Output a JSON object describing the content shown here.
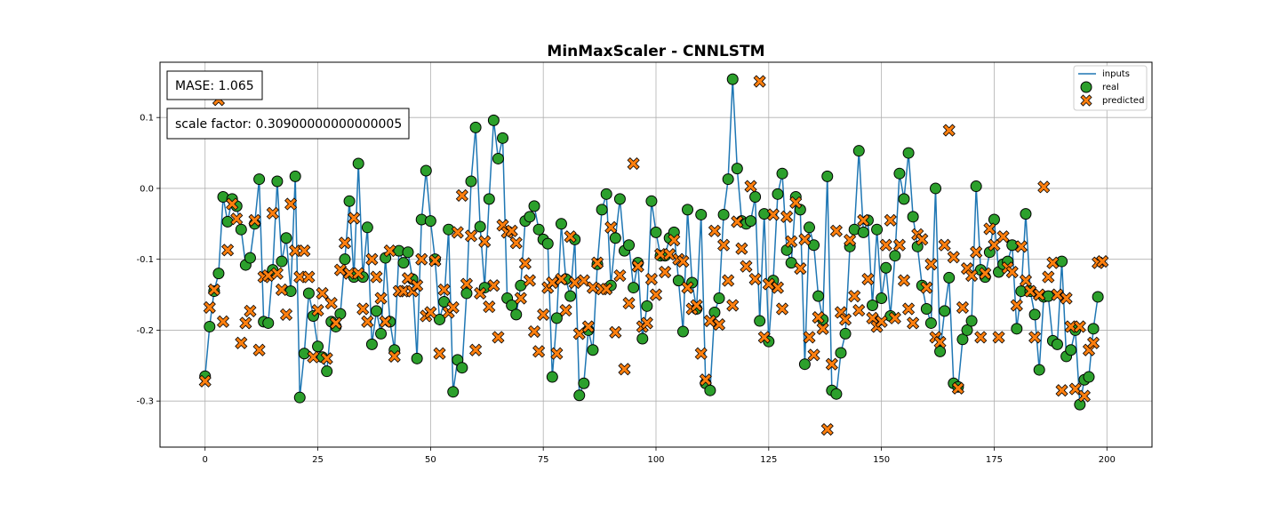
{
  "chart_data": {
    "type": "scatter",
    "title": "MinMaxScaler - CNNLSTM",
    "xlabel": "",
    "ylabel": "",
    "xlim": [
      -10,
      210
    ],
    "ylim": [
      -0.365,
      0.178
    ],
    "x_ticks": [
      0,
      25,
      50,
      75,
      100,
      125,
      150,
      175,
      200
    ],
    "y_ticks": [
      -0.3,
      -0.2,
      -0.1,
      0.0,
      0.1
    ],
    "grid": true,
    "legend_position": "top-right",
    "annotations": [
      {
        "text": "MASE: 1.065",
        "position": "top-left"
      },
      {
        "text": "scale factor: 0.30900000000000005",
        "position": "top-left"
      }
    ],
    "series": [
      {
        "name": "inputs",
        "kind": "line",
        "color": "#1f77b4",
        "values": [
          -0.265,
          -0.195,
          -0.145,
          -0.12,
          -0.012,
          -0.047,
          -0.015,
          -0.025,
          -0.058,
          -0.108,
          -0.098,
          -0.05,
          0.013,
          -0.188,
          -0.19,
          -0.115,
          0.01,
          -0.103,
          -0.07,
          -0.145,
          0.017,
          -0.295,
          -0.233,
          -0.148,
          -0.18,
          -0.223,
          -0.238,
          -0.258,
          -0.188,
          -0.195,
          -0.177,
          -0.1,
          -0.018,
          -0.125,
          0.035,
          -0.125,
          -0.055,
          -0.22,
          -0.173,
          -0.205,
          -0.098,
          -0.188,
          -0.228,
          -0.088,
          -0.105,
          -0.09,
          -0.128,
          -0.24,
          -0.044,
          0.025,
          -0.046,
          -0.1,
          -0.185,
          -0.16,
          -0.058,
          -0.287,
          -0.242,
          -0.253,
          -0.148,
          0.01,
          0.086,
          -0.054,
          -0.14,
          -0.015,
          0.096,
          0.042,
          0.071,
          -0.155,
          -0.165,
          -0.178,
          -0.137,
          -0.046,
          -0.04,
          -0.025,
          -0.058,
          -0.072,
          -0.078,
          -0.266,
          -0.183,
          -0.05,
          -0.128,
          -0.152,
          -0.072,
          -0.292,
          -0.275,
          -0.2,
          -0.228,
          -0.107,
          -0.03,
          -0.008,
          -0.137,
          -0.07,
          -0.015,
          -0.088,
          -0.08,
          -0.14,
          -0.105,
          -0.212,
          -0.166,
          -0.018,
          -0.062,
          -0.095,
          -0.095,
          -0.07,
          -0.062,
          -0.13,
          -0.202,
          -0.03,
          -0.133,
          -0.17,
          -0.037,
          -0.275,
          -0.285,
          -0.175,
          -0.155,
          -0.037,
          0.013,
          0.154,
          0.028,
          -0.046,
          -0.05,
          -0.046,
          -0.012,
          -0.187,
          -0.036,
          -0.216,
          -0.13,
          -0.008,
          0.021,
          -0.087,
          -0.105,
          -0.012,
          -0.03,
          -0.248,
          -0.055,
          -0.08,
          -0.152,
          -0.185,
          0.017,
          -0.285,
          -0.29,
          -0.232,
          -0.205,
          -0.082,
          -0.058,
          0.053,
          -0.062,
          -0.045,
          -0.165,
          -0.058,
          -0.155,
          -0.112,
          -0.18,
          -0.095,
          0.021,
          -0.015,
          0.05,
          -0.04,
          -0.082,
          -0.137,
          -0.17,
          -0.19,
          0.0,
          -0.23,
          -0.173,
          -0.126,
          -0.275,
          -0.28,
          -0.213,
          -0.2,
          -0.187,
          0.003,
          -0.115,
          -0.125,
          -0.09,
          -0.044,
          -0.118,
          -0.107,
          -0.103,
          -0.08,
          -0.198,
          -0.145,
          -0.036,
          -0.145,
          -0.178,
          -0.256,
          -0.153,
          -0.152,
          -0.215,
          -0.22,
          -0.103,
          -0.237,
          -0.228,
          -0.2,
          -0.305,
          -0.27,
          -0.266,
          -0.198,
          -0.153
        ]
      },
      {
        "name": "real",
        "kind": "scatter",
        "marker": "circle",
        "color": "#2ca02c",
        "values": [
          -0.265,
          -0.195,
          -0.145,
          -0.12,
          -0.012,
          -0.047,
          -0.015,
          -0.025,
          -0.058,
          -0.108,
          -0.098,
          -0.05,
          0.013,
          -0.188,
          -0.19,
          -0.115,
          0.01,
          -0.103,
          -0.07,
          -0.145,
          0.017,
          -0.295,
          -0.233,
          -0.148,
          -0.18,
          -0.223,
          -0.238,
          -0.258,
          -0.188,
          -0.195,
          -0.177,
          -0.1,
          -0.018,
          -0.125,
          0.035,
          -0.125,
          -0.055,
          -0.22,
          -0.173,
          -0.205,
          -0.098,
          -0.188,
          -0.228,
          -0.088,
          -0.105,
          -0.09,
          -0.128,
          -0.24,
          -0.044,
          0.025,
          -0.046,
          -0.1,
          -0.185,
          -0.16,
          -0.058,
          -0.287,
          -0.242,
          -0.253,
          -0.148,
          0.01,
          0.086,
          -0.054,
          -0.14,
          -0.015,
          0.096,
          0.042,
          0.071,
          -0.155,
          -0.165,
          -0.178,
          -0.137,
          -0.046,
          -0.04,
          -0.025,
          -0.058,
          -0.072,
          -0.078,
          -0.266,
          -0.183,
          -0.05,
          -0.128,
          -0.152,
          -0.072,
          -0.292,
          -0.275,
          -0.2,
          -0.228,
          -0.107,
          -0.03,
          -0.008,
          -0.137,
          -0.07,
          -0.015,
          -0.088,
          -0.08,
          -0.14,
          -0.105,
          -0.212,
          -0.166,
          -0.018,
          -0.062,
          -0.095,
          -0.095,
          -0.07,
          -0.062,
          -0.13,
          -0.202,
          -0.03,
          -0.133,
          -0.17,
          -0.037,
          -0.275,
          -0.285,
          -0.175,
          -0.155,
          -0.037,
          0.013,
          0.154,
          0.028,
          -0.046,
          -0.05,
          -0.046,
          -0.012,
          -0.187,
          -0.036,
          -0.216,
          -0.13,
          -0.008,
          0.021,
          -0.087,
          -0.105,
          -0.012,
          -0.03,
          -0.248,
          -0.055,
          -0.08,
          -0.152,
          -0.185,
          0.017,
          -0.285,
          -0.29,
          -0.232,
          -0.205,
          -0.082,
          -0.058,
          0.053,
          -0.062,
          -0.045,
          -0.165,
          -0.058,
          -0.155,
          -0.112,
          -0.18,
          -0.095,
          0.021,
          -0.015,
          0.05,
          -0.04,
          -0.082,
          -0.137,
          -0.17,
          -0.19,
          0.0,
          -0.23,
          -0.173,
          -0.126,
          -0.275,
          -0.28,
          -0.213,
          -0.2,
          -0.187,
          0.003,
          -0.115,
          -0.125,
          -0.09,
          -0.044,
          -0.118,
          -0.107,
          -0.103,
          -0.08,
          -0.198,
          -0.145,
          -0.036,
          -0.145,
          -0.178,
          -0.256,
          -0.153,
          -0.152,
          -0.215,
          -0.22,
          -0.103,
          -0.237,
          -0.228,
          -0.2,
          -0.305,
          -0.27,
          -0.266,
          -0.198,
          -0.153
        ]
      },
      {
        "name": "predicted",
        "kind": "scatter",
        "marker": "x",
        "color": "#ff7f0e",
        "values": [
          -0.272,
          -0.168,
          -0.143,
          0.125,
          -0.188,
          -0.087,
          -0.022,
          -0.043,
          -0.218,
          -0.19,
          -0.173,
          -0.045,
          -0.228,
          -0.125,
          -0.123,
          -0.035,
          -0.12,
          -0.143,
          -0.178,
          -0.022,
          -0.088,
          -0.125,
          -0.088,
          -0.125,
          -0.238,
          -0.172,
          -0.148,
          -0.24,
          -0.162,
          -0.19,
          -0.115,
          -0.077,
          -0.12,
          -0.042,
          -0.12,
          -0.17,
          -0.188,
          -0.1,
          -0.125,
          -0.155,
          -0.188,
          -0.088,
          -0.237,
          -0.145,
          -0.145,
          -0.127,
          -0.145,
          -0.137,
          -0.1,
          -0.18,
          -0.175,
          -0.102,
          -0.233,
          -0.143,
          -0.175,
          -0.168,
          -0.062,
          -0.01,
          -0.135,
          -0.067,
          -0.228,
          -0.148,
          -0.075,
          -0.167,
          -0.137,
          -0.21,
          -0.052,
          -0.062,
          -0.06,
          -0.077,
          -0.155,
          -0.106,
          -0.13,
          -0.202,
          -0.23,
          -0.178,
          -0.14,
          -0.133,
          -0.233,
          -0.128,
          -0.172,
          -0.068,
          -0.133,
          -0.205,
          -0.13,
          -0.195,
          -0.14,
          -0.105,
          -0.142,
          -0.142,
          -0.055,
          -0.203,
          -0.123,
          -0.255,
          -0.162,
          0.035,
          -0.11,
          -0.195,
          -0.19,
          -0.128,
          -0.15,
          -0.093,
          -0.118,
          -0.093,
          -0.073,
          -0.1,
          -0.103,
          -0.14,
          -0.17,
          -0.165,
          -0.233,
          -0.27,
          -0.187,
          -0.06,
          -0.192,
          -0.08,
          -0.13,
          -0.165,
          -0.047,
          -0.085,
          -0.11,
          0.003,
          -0.128,
          0.151,
          -0.21,
          -0.135,
          -0.037,
          -0.14,
          -0.17,
          -0.04,
          -0.075,
          -0.02,
          -0.113,
          -0.072,
          -0.21,
          -0.235,
          -0.182,
          -0.198,
          -0.34,
          -0.248,
          -0.06,
          -0.175,
          -0.185,
          -0.073,
          -0.152,
          -0.172,
          -0.045,
          -0.128,
          -0.183,
          -0.195,
          -0.188,
          -0.08,
          -0.045,
          -0.183,
          -0.08,
          -0.13,
          -0.17,
          -0.19,
          -0.065,
          -0.072,
          -0.14,
          -0.107,
          -0.21,
          -0.217,
          -0.08,
          0.082,
          -0.097,
          -0.282,
          -0.168,
          -0.113,
          -0.123,
          -0.09,
          -0.21,
          -0.12,
          -0.057,
          -0.08,
          -0.21,
          -0.068,
          -0.112,
          -0.118,
          -0.165,
          -0.082,
          -0.13,
          -0.145,
          -0.21,
          -0.15,
          0.002,
          -0.125,
          -0.105,
          -0.15,
          -0.285,
          -0.155,
          -0.195,
          -0.283,
          -0.195,
          -0.293,
          -0.228,
          -0.218,
          -0.105,
          -0.103
        ]
      }
    ]
  }
}
